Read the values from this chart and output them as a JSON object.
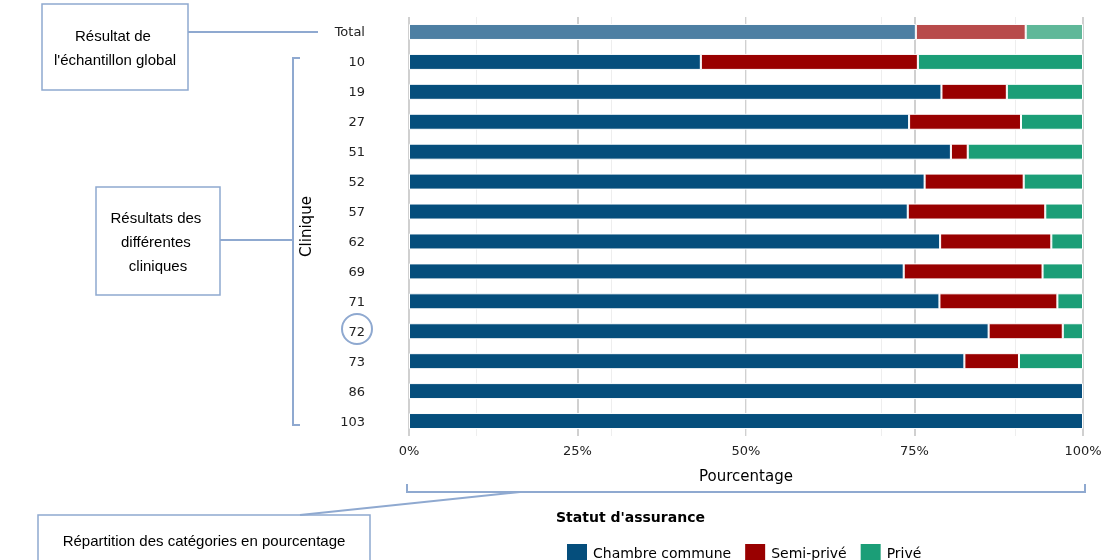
{
  "chart_data": {
    "type": "bar",
    "orientation": "horizontal",
    "stacked": true,
    "categories": [
      "Total",
      "10",
      "19",
      "27",
      "51",
      "52",
      "57",
      "62",
      "69",
      "71",
      "72",
      "73",
      "86",
      "103"
    ],
    "series": [
      {
        "name": "Chambre commune",
        "color": "#054e7c",
        "colors": [
          "#4d7fa3",
          "#054e7c",
          "#054e7c",
          "#054e7c",
          "#054e7c",
          "#054e7c",
          "#054e7c",
          "#054e7c",
          "#054e7c",
          "#054e7c",
          "#054e7c",
          "#054e7c",
          "#054e7c",
          "#054e7c"
        ],
        "values": [
          75.2,
          43.3,
          79.0,
          74.2,
          80.4,
          76.5,
          74.0,
          78.8,
          73.4,
          78.7,
          86.0,
          82.4,
          100,
          100
        ]
      },
      {
        "name": "Semi-privé",
        "color": "#990000",
        "colors": [
          "#b84b4b",
          "#990000",
          "#990000",
          "#990000",
          "#990000",
          "#990000",
          "#990000",
          "#990000",
          "#990000",
          "#990000",
          "#990000",
          "#990000",
          "#990000",
          "#990000"
        ],
        "values": [
          16.3,
          32.2,
          9.7,
          16.6,
          2.5,
          14.7,
          20.4,
          16.5,
          20.6,
          17.5,
          11.0,
          8.1,
          0,
          0
        ]
      },
      {
        "name": "Privé",
        "color": "#1b9e77",
        "colors": [
          "#5fb899",
          "#1b9e77",
          "#1b9e77",
          "#1b9e77",
          "#1b9e77",
          "#1b9e77",
          "#1b9e77",
          "#1b9e77",
          "#1b9e77",
          "#1b9e77",
          "#1b9e77",
          "#1b9e77",
          "#1b9e77",
          "#1b9e77"
        ],
        "values": [
          8.5,
          24.5,
          11.3,
          9.2,
          17.1,
          8.8,
          5.6,
          4.7,
          6.0,
          3.8,
          3.0,
          9.5,
          0,
          0
        ]
      }
    ],
    "xlabel": "Pourcentage",
    "ylabel": "Clinique",
    "legend_title": "Statut d'assurance",
    "legend": "bottom",
    "grid": true,
    "xlim": [
      0,
      100
    ],
    "xticks": [
      {
        "value": 0,
        "label": "0%"
      },
      {
        "value": 25,
        "label": "25%"
      },
      {
        "value": 50,
        "label": "50%"
      },
      {
        "value": 75,
        "label": "75%"
      },
      {
        "value": 100,
        "label": "100%"
      }
    ],
    "annotations": [
      "Résultat de l'échantillon global",
      "Résultats des différentes cliniques",
      "Répartition des catégories en pourcentage"
    ]
  }
}
